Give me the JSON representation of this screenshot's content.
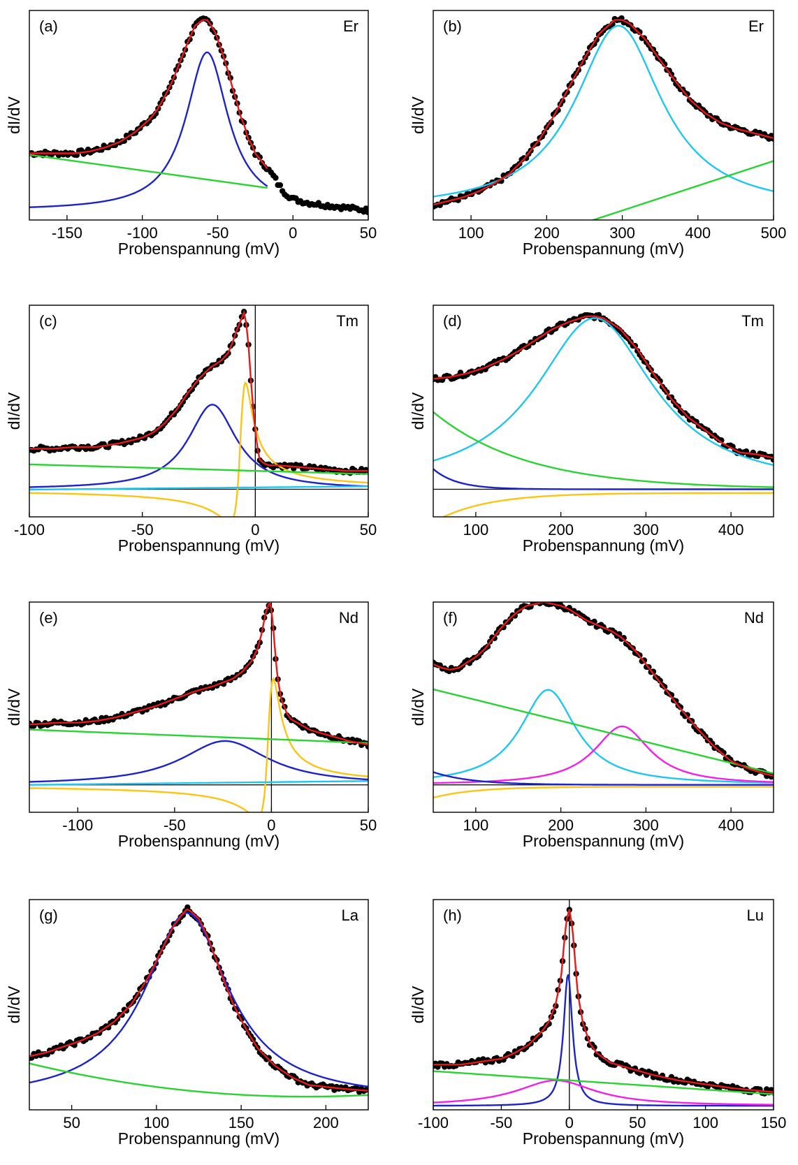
{
  "chart_data": [
    {
      "type": "line",
      "panel_label": "(a)",
      "element": "Er",
      "xlabel": "Probenspannung (mV)",
      "ylabel": "dI/dV",
      "xlim": [
        -175,
        50
      ],
      "ylim": [
        -0.05,
        1.05
      ],
      "xticks": [
        -150,
        -100,
        -50,
        0,
        50
      ],
      "xtick_labels": [
        "-150",
        "-100",
        "-50",
        "0",
        "50"
      ],
      "zero_line": {
        "h": false,
        "v": false
      },
      "measured": {
        "color": "#000000",
        "x": [
          -175,
          -165,
          -155,
          -145,
          -135,
          -125,
          -115,
          -105,
          -95,
          -90,
          -85,
          -80,
          -75,
          -70,
          -65,
          -60,
          -57,
          -55,
          -52,
          -50,
          -47,
          -45,
          -42,
          -40,
          -37,
          -35,
          -32,
          -30,
          -27,
          -25,
          -22,
          -20,
          -17,
          -15,
          -12,
          -10,
          -5,
          0,
          5,
          10,
          20,
          30,
          40,
          50
        ],
        "y": [
          0.3,
          0.3,
          0.3,
          0.3,
          0.31,
          0.33,
          0.36,
          0.41,
          0.48,
          0.53,
          0.6,
          0.68,
          0.78,
          0.88,
          0.97,
          1.0,
          1.0,
          0.98,
          0.94,
          0.9,
          0.83,
          0.78,
          0.7,
          0.64,
          0.56,
          0.5,
          0.44,
          0.38,
          0.34,
          0.3,
          0.27,
          0.25,
          0.22,
          0.2,
          0.17,
          0.14,
          0.09,
          0.06,
          0.05,
          0.04,
          0.03,
          0.02,
          0.01,
          0.0
        ]
      },
      "series": [
        {
          "name": "",
          "color": "#e8191a",
          "shape": "sum",
          "x0": -175,
          "x1": -17
        },
        {
          "name": "",
          "color": "#1d24c7",
          "shape": "lorentz",
          "x0": -175,
          "x1": -17,
          "center": -57,
          "width": 34,
          "amp": 0.83,
          "offset": 0
        },
        {
          "name": "",
          "color": "#2ad331",
          "shape": "poly",
          "x0": -175,
          "x1": -17,
          "coef": [
            0.1,
            -0.0011
          ]
        }
      ]
    },
    {
      "type": "line",
      "panel_label": "(b)",
      "element": "Er",
      "xlabel": "Probenspannung (mV)",
      "ylabel": "dI/dV",
      "xlim": [
        50,
        500
      ],
      "ylim": [
        -0.05,
        1.05
      ],
      "xticks": [
        100,
        200,
        300,
        400,
        500
      ],
      "xtick_labels": [
        "100",
        "200",
        "300",
        "400",
        "500"
      ],
      "zero_line": {
        "h": false,
        "v": false
      },
      "measured": {
        "color": "#000000",
        "x": [
          50,
          70,
          90,
          110,
          130,
          150,
          170,
          190,
          210,
          230,
          250,
          270,
          290,
          300,
          310,
          330,
          350,
          370,
          390,
          410,
          430,
          450,
          470,
          490,
          500
        ],
        "y": [
          0.03,
          0.05,
          0.07,
          0.1,
          0.14,
          0.19,
          0.27,
          0.37,
          0.5,
          0.65,
          0.8,
          0.93,
          1.0,
          1.0,
          0.98,
          0.9,
          0.79,
          0.68,
          0.58,
          0.51,
          0.46,
          0.43,
          0.41,
          0.39,
          0.38
        ]
      },
      "series": [
        {
          "name": "",
          "color": "#e8191a",
          "shape": "sum",
          "x0": 50,
          "x1": 500
        },
        {
          "name": "",
          "color": "#1fc6f0",
          "shape": "lorentz",
          "x0": 50,
          "x1": 500,
          "center": 295,
          "width": 140,
          "amp": 0.97,
          "offset": 0
        },
        {
          "name": "",
          "color": "#2ad331",
          "shape": "poly",
          "x0": 150,
          "x1": 500,
          "coef": [
            -0.39,
            0.0013
          ]
        }
      ]
    },
    {
      "type": "line",
      "panel_label": "(c)",
      "element": "Tm",
      "xlabel": "Probenspannung (mV)",
      "ylabel": "dI/dV",
      "xlim": [
        -100,
        50
      ],
      "ylim": [
        -0.15,
        1.0
      ],
      "xticks": [
        -100,
        -50,
        0,
        50
      ],
      "xtick_labels": [
        "-100",
        "-50",
        "0",
        "50"
      ],
      "zero_line": {
        "h": true,
        "v": true
      },
      "measured": {
        "color": "#000000",
        "x": [
          -100,
          -90,
          -80,
          -70,
          -60,
          -50,
          -45,
          -40,
          -35,
          -30,
          -25,
          -20,
          -15,
          -12,
          -10,
          -8,
          -6,
          -5,
          -4,
          -3,
          -2,
          -1,
          0,
          1,
          2,
          4,
          6,
          10,
          20,
          30,
          40,
          50
        ],
        "y": [
          0.22,
          0.22,
          0.23,
          0.23,
          0.25,
          0.28,
          0.31,
          0.36,
          0.43,
          0.52,
          0.6,
          0.66,
          0.7,
          0.74,
          0.8,
          0.87,
          0.93,
          0.96,
          0.9,
          0.78,
          0.6,
          0.45,
          0.32,
          0.22,
          0.16,
          0.14,
          0.13,
          0.13,
          0.12,
          0.11,
          0.1,
          0.1
        ]
      },
      "series": [
        {
          "name": "",
          "color": "#e8191a",
          "shape": "sum",
          "x0": -100,
          "x1": 50
        },
        {
          "name": "",
          "color": "#1d24c7",
          "shape": "lorentz",
          "x0": -100,
          "x1": 50,
          "center": -19,
          "width": 26,
          "amp": 0.46,
          "offset": 0
        },
        {
          "name": "",
          "color": "#fbc416",
          "shape": "fano",
          "x0": -100,
          "x1": 50,
          "center": -6,
          "width": 6,
          "amp": 0.58,
          "q": 1.8
        },
        {
          "name": "",
          "color": "#2ad331",
          "shape": "poly",
          "x0": -100,
          "x1": 50,
          "coef": [
            0.1,
            -0.00035
          ]
        },
        {
          "name": "",
          "color": "#1fc6f0",
          "shape": "poly",
          "x0": -100,
          "x1": 50,
          "coef": [
            0.01,
            0.00012
          ]
        }
      ]
    },
    {
      "type": "line",
      "panel_label": "(d)",
      "element": "Tm",
      "xlabel": "Probenspannung (mV)",
      "ylabel": "dI/dV",
      "xlim": [
        50,
        450
      ],
      "ylim": [
        -0.15,
        1.0
      ],
      "xticks": [
        100,
        200,
        300,
        400
      ],
      "xtick_labels": [
        "100",
        "200",
        "300",
        "400"
      ],
      "zero_line": {
        "h": true,
        "v": false
      },
      "measured": {
        "color": "#000000",
        "x": [
          50,
          70,
          90,
          110,
          130,
          150,
          170,
          190,
          210,
          230,
          240,
          250,
          270,
          290,
          310,
          330,
          350,
          370,
          390,
          410,
          430,
          450
        ],
        "y": [
          0.6,
          0.61,
          0.63,
          0.66,
          0.7,
          0.75,
          0.81,
          0.87,
          0.91,
          0.94,
          0.94,
          0.93,
          0.87,
          0.76,
          0.62,
          0.49,
          0.39,
          0.32,
          0.25,
          0.2,
          0.19,
          0.17
        ]
      },
      "series": [
        {
          "name": "",
          "color": "#e8191a",
          "shape": "sum",
          "x0": 50,
          "x1": 450
        },
        {
          "name": "",
          "color": "#1fc6f0",
          "shape": "lorentz",
          "x0": 50,
          "x1": 450,
          "center": 240,
          "width": 170,
          "amp": 0.93,
          "offset": 0
        },
        {
          "name": "",
          "color": "#2ad331",
          "shape": "exp",
          "x0": 50,
          "x1": 450,
          "amp": 0.42,
          "decay": 110
        },
        {
          "name": "",
          "color": "#1d24c7",
          "shape": "exp",
          "x0": 50,
          "x1": 450,
          "amp": 0.11,
          "decay": 28
        },
        {
          "name": "",
          "color": "#fbc416",
          "shape": "exp",
          "x0": 50,
          "x1": 450,
          "amp": -0.16,
          "decay": 60,
          "offset": -0.02
        }
      ]
    },
    {
      "type": "line",
      "panel_label": "(e)",
      "element": "Nd",
      "xlabel": "Probenspannung (mV)",
      "ylabel": "dI/dV",
      "xlim": [
        -125,
        50
      ],
      "ylim": [
        -0.15,
        1.0
      ],
      "xticks": [
        -100,
        -50,
        0,
        50
      ],
      "xtick_labels": [
        "-100",
        "-50",
        "0",
        "50"
      ],
      "zero_line": {
        "h": true,
        "v": true
      },
      "measured": {
        "color": "#000000",
        "x": [
          -125,
          -110,
          -100,
          -90,
          -80,
          -70,
          -60,
          -50,
          -40,
          -30,
          -20,
          -15,
          -10,
          -7,
          -5,
          -3,
          -1,
          0,
          1,
          2,
          3,
          5,
          8,
          10,
          15,
          20,
          30,
          40,
          50
        ],
        "y": [
          0.33,
          0.34,
          0.34,
          0.35,
          0.37,
          0.4,
          0.43,
          0.47,
          0.51,
          0.54,
          0.58,
          0.62,
          0.68,
          0.75,
          0.83,
          0.94,
          1.0,
          0.96,
          0.85,
          0.72,
          0.6,
          0.47,
          0.39,
          0.36,
          0.33,
          0.3,
          0.27,
          0.24,
          0.22
        ]
      },
      "series": [
        {
          "name": "",
          "color": "#e8191a",
          "shape": "sum",
          "x0": -125,
          "x1": 50
        },
        {
          "name": "",
          "color": "#1d24c7",
          "shape": "lorentz",
          "x0": -125,
          "x1": 50,
          "center": -24,
          "width": 55,
          "amp": 0.24,
          "offset": 0
        },
        {
          "name": "",
          "color": "#fbc416",
          "shape": "fano",
          "x0": -125,
          "x1": 50,
          "center": -1,
          "width": 7,
          "amp": 0.58,
          "q": 1.8
        },
        {
          "name": "",
          "color": "#2ad331",
          "shape": "poly",
          "x0": -125,
          "x1": 50,
          "coef": [
            0.25,
            -0.00042
          ]
        },
        {
          "name": "",
          "color": "#1fc6f0",
          "shape": "poly",
          "x0": -125,
          "x1": 50,
          "coef": [
            0.015,
            0.00012
          ]
        }
      ]
    },
    {
      "type": "line",
      "panel_label": "(f)",
      "element": "Nd",
      "xlabel": "Probenspannung (mV)",
      "ylabel": "dI/dV",
      "xlim": [
        50,
        450
      ],
      "ylim": [
        -0.15,
        1.0
      ],
      "xticks": [
        100,
        200,
        300,
        400
      ],
      "xtick_labels": [
        "100",
        "200",
        "300",
        "400"
      ],
      "zero_line": {
        "h": true,
        "v": false
      },
      "measured": {
        "color": "#000000",
        "x": [
          50,
          60,
          70,
          80,
          90,
          100,
          110,
          120,
          130,
          140,
          150,
          160,
          170,
          180,
          190,
          200,
          210,
          220,
          230,
          240,
          250,
          260,
          270,
          280,
          290,
          300,
          320,
          340,
          360,
          380,
          400,
          420,
          440,
          450
        ],
        "y": [
          0.66,
          0.64,
          0.63,
          0.64,
          0.67,
          0.7,
          0.74,
          0.8,
          0.86,
          0.91,
          0.95,
          0.98,
          0.99,
          1.0,
          0.99,
          0.98,
          0.96,
          0.93,
          0.9,
          0.88,
          0.86,
          0.84,
          0.81,
          0.77,
          0.72,
          0.66,
          0.54,
          0.42,
          0.31,
          0.21,
          0.13,
          0.09,
          0.06,
          0.05
        ]
      },
      "series": [
        {
          "name": "",
          "color": "#e8191a",
          "shape": "sum",
          "x0": 50,
          "x1": 450
        },
        {
          "name": "",
          "color": "#1fc6f0",
          "shape": "lorentz",
          "x0": 50,
          "x1": 450,
          "center": 185,
          "width": 80,
          "amp": 0.52,
          "offset": 0
        },
        {
          "name": "",
          "color": "#f221e6",
          "shape": "lorentz",
          "x0": 50,
          "x1": 450,
          "center": 272,
          "width": 80,
          "amp": 0.32,
          "offset": 0
        },
        {
          "name": "",
          "color": "#2ad331",
          "shape": "poly",
          "x0": 50,
          "x1": 450,
          "coef": [
            0.58,
            -0.00115
          ]
        },
        {
          "name": "",
          "color": "#1d24c7",
          "shape": "exp",
          "x0": 50,
          "x1": 450,
          "amp": 0.07,
          "decay": 45
        },
        {
          "name": "",
          "color": "#fbc416",
          "shape": "exp",
          "x0": 50,
          "x1": 450,
          "amp": -0.06,
          "decay": 50,
          "offset": -0.01
        }
      ]
    },
    {
      "type": "line",
      "panel_label": "(g)",
      "element": "La",
      "xlabel": "Probenspannung (mV)",
      "ylabel": "dI/dV",
      "xlim": [
        25,
        225
      ],
      "ylim": [
        -0.05,
        1.05
      ],
      "xticks": [
        50,
        100,
        150,
        200
      ],
      "xtick_labels": [
        "50",
        "100",
        "150",
        "200"
      ],
      "zero_line": {
        "h": false,
        "v": false
      },
      "measured": {
        "color": "#000000",
        "x": [
          25,
          35,
          45,
          55,
          65,
          75,
          85,
          95,
          105,
          110,
          115,
          118,
          120,
          125,
          130,
          135,
          140,
          145,
          150,
          155,
          160,
          170,
          180,
          190,
          200,
          210,
          225
        ],
        "y": [
          0.23,
          0.25,
          0.28,
          0.31,
          0.35,
          0.41,
          0.5,
          0.64,
          0.82,
          0.91,
          0.97,
          1.0,
          0.99,
          0.95,
          0.86,
          0.74,
          0.62,
          0.51,
          0.42,
          0.34,
          0.27,
          0.18,
          0.12,
          0.08,
          0.07,
          0.06,
          0.05
        ]
      },
      "series": [
        {
          "name": "",
          "color": "#e8191a",
          "shape": "sum",
          "x0": 25,
          "x1": 225
        },
        {
          "name": "",
          "color": "#1d24c7",
          "shape": "lorentz",
          "x0": 25,
          "x1": 225,
          "center": 118,
          "width": 60,
          "amp": 0.98,
          "offset": 0
        },
        {
          "name": "",
          "color": "#2ad331",
          "shape": "poly",
          "x0": 25,
          "x1": 225,
          "coef": [
            0.25,
            -0.00245,
            6.5e-06
          ]
        }
      ]
    },
    {
      "type": "line",
      "panel_label": "(h)",
      "element": "Lu",
      "xlabel": "Probenspannung (mV)",
      "ylabel": "dI/dV",
      "xlim": [
        -100,
        150
      ],
      "ylim": [
        -0.02,
        1.05
      ],
      "xticks": [
        -100,
        -50,
        0,
        50,
        100,
        150
      ],
      "xtick_labels": [
        "-100",
        "-50",
        "0",
        "50",
        "100",
        "150"
      ],
      "zero_line": {
        "h": false,
        "v": true
      },
      "measured": {
        "color": "#000000",
        "x": [
          -100,
          -90,
          -80,
          -70,
          -60,
          -50,
          -40,
          -30,
          -20,
          -15,
          -10,
          -6,
          -4,
          -2,
          0,
          2,
          4,
          6,
          10,
          15,
          20,
          30,
          40,
          50,
          60,
          80,
          100,
          120,
          150
        ],
        "y": [
          0.21,
          0.21,
          0.21,
          0.22,
          0.23,
          0.24,
          0.27,
          0.31,
          0.38,
          0.43,
          0.52,
          0.66,
          0.82,
          0.95,
          1.0,
          0.92,
          0.76,
          0.58,
          0.42,
          0.32,
          0.27,
          0.22,
          0.2,
          0.18,
          0.16,
          0.13,
          0.11,
          0.09,
          0.07
        ]
      },
      "series": [
        {
          "name": "",
          "color": "#e8191a",
          "shape": "sum",
          "x0": -100,
          "x1": 150
        },
        {
          "name": "",
          "color": "#1d24c7",
          "shape": "lorentz",
          "x0": -100,
          "x1": 150,
          "center": -1,
          "width": 8,
          "amp": 0.67,
          "offset": 0
        },
        {
          "name": "",
          "color": "#f221e6",
          "shape": "lorentz",
          "x0": -100,
          "x1": 150,
          "center": -10,
          "width": 70,
          "amp": 0.13,
          "offset": 0
        },
        {
          "name": "",
          "color": "#2ad331",
          "shape": "poly",
          "x0": -100,
          "x1": 150,
          "coef": [
            0.13,
            -0.00047
          ]
        }
      ]
    }
  ]
}
